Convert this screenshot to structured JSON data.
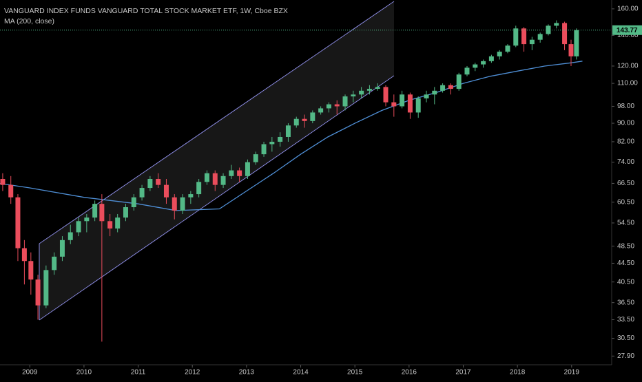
{
  "chart_data": {
    "type": "candlestick",
    "title": "VANGUARD INDEX FUNDS VANGUARD TOTAL STOCK MARKET ETF, 1W, Cboe BZX",
    "log_scale": true,
    "up_color": "#53b987",
    "down_color": "#eb4d5c",
    "x": [
      2008.5,
      2008.65,
      2008.78,
      2008.9,
      2009.02,
      2009.15,
      2009.3,
      2009.45,
      2009.6,
      2009.75,
      2009.9,
      2010.05,
      2010.2,
      2010.33,
      2010.48,
      2010.62,
      2010.77,
      2010.92,
      2011.07,
      2011.22,
      2011.37,
      2011.52,
      2011.67,
      2011.82,
      2011.97,
      2012.12,
      2012.27,
      2012.42,
      2012.57,
      2012.72,
      2012.87,
      2013.02,
      2013.17,
      2013.32,
      2013.47,
      2013.62,
      2013.77,
      2013.92,
      2014.07,
      2014.22,
      2014.37,
      2014.52,
      2014.67,
      2014.82,
      2014.97,
      2015.12,
      2015.27,
      2015.42,
      2015.57,
      2015.72,
      2015.87,
      2016.02,
      2016.17,
      2016.32,
      2016.47,
      2016.62,
      2016.77,
      2016.92,
      2017.07,
      2017.22,
      2017.37,
      2017.52,
      2017.67,
      2017.82,
      2017.97,
      2018.12,
      2018.27,
      2018.42,
      2018.57,
      2018.72,
      2018.87,
      2018.99,
      2019.09
    ],
    "open": [
      68,
      66,
      62,
      48,
      45,
      41,
      36,
      43,
      46,
      50,
      52,
      55,
      56,
      60,
      55,
      53,
      56,
      59,
      62,
      65,
      68,
      66,
      62,
      58,
      62,
      63,
      67,
      70,
      66,
      69,
      71,
      69,
      74,
      77,
      81,
      82,
      84,
      89,
      92,
      91,
      95,
      97,
      99,
      98,
      103,
      104,
      106,
      107,
      108,
      100,
      98,
      104,
      95,
      102,
      104,
      106,
      109,
      107,
      115,
      119,
      121,
      123,
      126,
      129,
      133,
      145,
      134,
      137,
      141,
      147,
      149,
      134,
      126
    ],
    "high": [
      70,
      69,
      63,
      50,
      47,
      42,
      44,
      47,
      51,
      54,
      56,
      57,
      61,
      63,
      57,
      57,
      60,
      63,
      66,
      69,
      70,
      68,
      63,
      63,
      64,
      68,
      71,
      71,
      70,
      73,
      72,
      75,
      78,
      82,
      84,
      86,
      90,
      93,
      94,
      96,
      98,
      100,
      101,
      104,
      106,
      108,
      109,
      110,
      109,
      104,
      106,
      105,
      103,
      106,
      108,
      110,
      110,
      116,
      120,
      122,
      124,
      127,
      130,
      134,
      147,
      146,
      139,
      142,
      148,
      151,
      150,
      137,
      145
    ],
    "low": [
      64,
      60,
      45,
      40,
      38,
      33.5,
      35.5,
      42,
      45,
      49,
      51,
      52,
      55,
      30,
      51,
      52,
      55,
      58,
      61,
      64,
      65,
      60,
      55.5,
      57,
      60,
      62,
      66,
      64,
      65,
      68,
      67,
      68,
      73,
      76,
      78,
      80,
      82,
      88,
      88,
      90,
      94,
      95,
      94,
      96,
      100,
      102,
      104,
      106,
      98,
      93,
      97,
      92,
      92.5,
      100,
      99,
      105,
      104,
      106,
      114,
      117,
      119,
      122,
      124,
      128,
      132,
      129,
      130,
      135,
      140,
      145,
      130,
      120,
      124
    ],
    "close": [
      66,
      62,
      48,
      45,
      41,
      36,
      43,
      46,
      50,
      52,
      55,
      56,
      60,
      55,
      53,
      56,
      59,
      62,
      65,
      68,
      66,
      62,
      58,
      62,
      63,
      67,
      70,
      66,
      69,
      71,
      69,
      74,
      77,
      81,
      82,
      84,
      89,
      92,
      91,
      95,
      97,
      99,
      98,
      103,
      104,
      106,
      107,
      108,
      100,
      98,
      104,
      95,
      102,
      104,
      106,
      109,
      107,
      115,
      119,
      121,
      123,
      126,
      129,
      133,
      145,
      134,
      137,
      141,
      147,
      149,
      134,
      126,
      143.77
    ],
    "ma": {
      "name": "MA (200, close)",
      "color": "#4f8fd6",
      "x": [
        2008.45,
        2009.0,
        2010.0,
        2011.0,
        2011.7,
        2012.5,
        2013.0,
        2013.5,
        2014.0,
        2014.5,
        2015.0,
        2015.5,
        2016.0,
        2016.5,
        2017.0,
        2017.5,
        2018.0,
        2018.5,
        2019.0,
        2019.2
      ],
      "values": [
        66.5,
        65,
        62,
        60,
        58,
        58.5,
        64,
        70,
        77,
        84,
        90,
        96,
        101,
        105,
        110,
        114,
        117,
        120,
        122,
        123
      ]
    },
    "xlim": [
      2008.45,
      2019.74
    ],
    "xticks": [
      2009,
      2010,
      2011,
      2012,
      2013,
      2014,
      2015,
      2016,
      2017,
      2018,
      2019
    ],
    "ylim": [
      26.7,
      167.3
    ],
    "yticks": [
      {
        "value": 160,
        "label": "160.00"
      },
      {
        "value": 140,
        "label": "140.00"
      },
      {
        "value": 120,
        "label": "120.00"
      },
      {
        "value": 110,
        "label": "110.00"
      },
      {
        "value": 98,
        "label": "98.00"
      },
      {
        "value": 90,
        "label": "90.00"
      },
      {
        "value": 82,
        "label": "82.00"
      },
      {
        "value": 74,
        "label": "74.00"
      },
      {
        "value": 66.5,
        "label": "66.50"
      },
      {
        "value": 60.5,
        "label": "60.50"
      },
      {
        "value": 54.5,
        "label": "54.50"
      },
      {
        "value": 48.5,
        "label": "48.50"
      },
      {
        "value": 44.5,
        "label": "44.50"
      },
      {
        "value": 40.5,
        "label": "40.50"
      },
      {
        "value": 36.5,
        "label": "36.50"
      },
      {
        "value": 33.5,
        "label": "33.50"
      },
      {
        "value": 30.5,
        "label": "30.50"
      },
      {
        "value": 27.9,
        "label": "27.90"
      }
    ]
  }
}
